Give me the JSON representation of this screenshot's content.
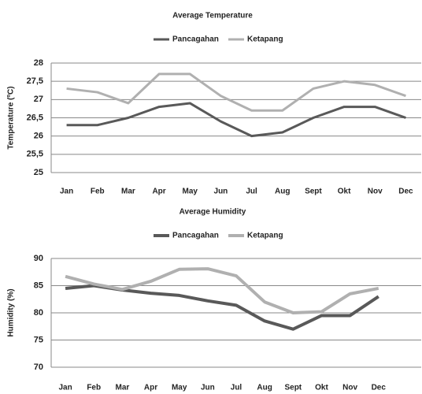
{
  "chart_data": [
    {
      "type": "line",
      "title": "Average Temperature",
      "y_label": "Temperature (ºC)",
      "categories": [
        "Jan",
        "Feb",
        "Mar",
        "Apr",
        "May",
        "Jun",
        "Jul",
        "Aug",
        "Sept",
        "Okt",
        "Nov",
        "Dec"
      ],
      "series": [
        {
          "name": "Pancagahan",
          "color": "#595959",
          "values": [
            26.3,
            26.3,
            26.5,
            26.8,
            26.9,
            26.4,
            26.0,
            26.1,
            26.5,
            26.8,
            26.8,
            26.5
          ]
        },
        {
          "name": "Ketapang",
          "color": "#b0b0b0",
          "values": [
            27.3,
            27.2,
            26.9,
            27.7,
            27.7,
            27.1,
            26.7,
            26.7,
            27.3,
            27.5,
            27.4,
            27.1
          ]
        }
      ],
      "ylim": [
        25,
        28
      ],
      "yticks": [
        25,
        {
          "value": 25.5,
          "label": "25,5"
        },
        26,
        {
          "value": 26.5,
          "label": "26,5"
        },
        27,
        {
          "value": 27.5,
          "label": "27,5"
        },
        28
      ],
      "grid": true,
      "legend": "top"
    },
    {
      "type": "line",
      "title": "Average Humidity",
      "y_label": "Humidity (%)",
      "categories": [
        "Jan",
        "Feb",
        "Mar",
        "Apr",
        "May",
        "Jun",
        "Jul",
        "Aug",
        "Sept",
        "Okt",
        "Nov",
        "Dec",
        null
      ],
      "series": [
        {
          "name": "Pancagahan",
          "color": "#595959",
          "values": [
            84.5,
            85,
            84.2,
            83.6,
            83.2,
            82.2,
            81.4,
            78.5,
            77,
            79.5,
            79.5,
            83,
            null
          ]
        },
        {
          "name": "Ketapang",
          "color": "#b0b0b0",
          "values": [
            86.7,
            85.3,
            84.3,
            85.8,
            88,
            88.1,
            86.8,
            82,
            80,
            80.2,
            83.5,
            84.5,
            null
          ]
        }
      ],
      "ylim": [
        70,
        90
      ],
      "yticks": [
        70,
        75,
        80,
        85,
        90
      ],
      "grid": true,
      "legend": "top"
    }
  ]
}
